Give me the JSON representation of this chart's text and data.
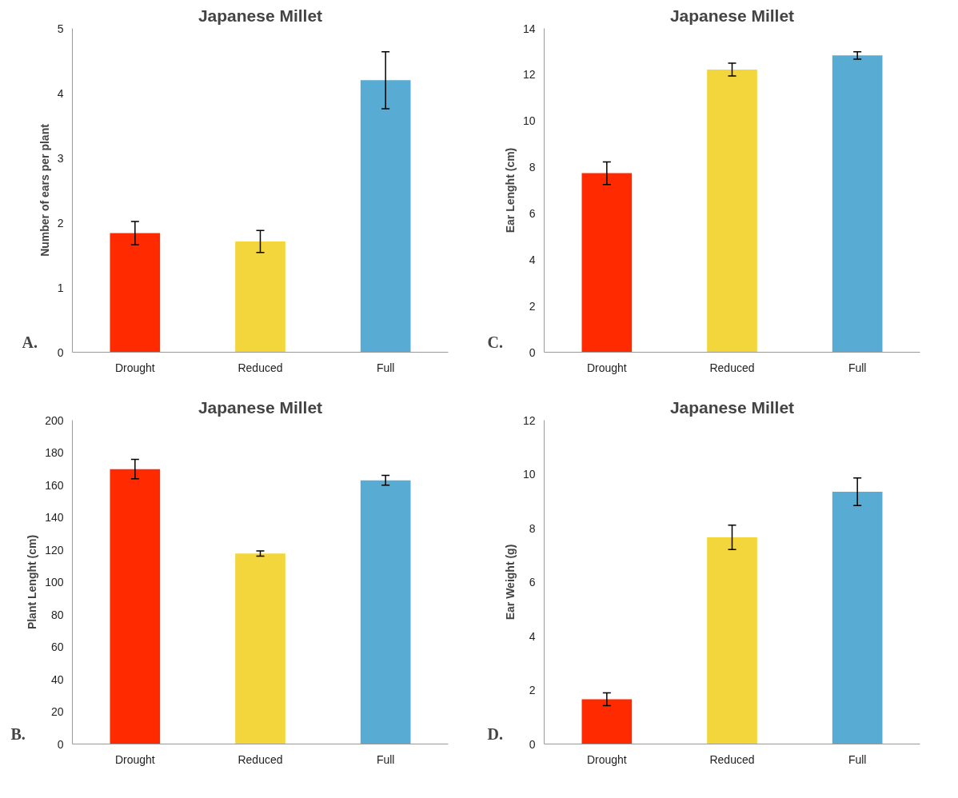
{
  "chart_data": [
    {
      "type": "bar",
      "title": "Japanese Millet",
      "ylabel": "Number of ears per plant",
      "categories": [
        "Drought",
        "Reduced",
        "Full"
      ],
      "values": [
        1.84,
        1.71,
        4.2
      ],
      "errors": [
        0.18,
        0.17,
        0.44
      ],
      "colors": [
        "#ff2a00",
        "#f3d63c",
        "#58abd3"
      ],
      "ylim": [
        0,
        5
      ],
      "yticks": [
        0,
        1,
        2,
        3,
        4,
        5
      ],
      "annotations": [
        "A."
      ]
    },
    {
      "type": "bar",
      "title": "Japanese Millet",
      "ylabel": "Ear Lenght (cm)",
      "categories": [
        "Drought",
        "Reduced",
        "Full"
      ],
      "values": [
        7.74,
        12.22,
        12.83
      ],
      "errors": [
        0.49,
        0.28,
        0.16
      ],
      "colors": [
        "#ff2a00",
        "#f3d63c",
        "#58abd3"
      ],
      "ylim": [
        0,
        14
      ],
      "yticks": [
        0,
        2,
        4,
        6,
        8,
        10,
        12,
        14
      ],
      "annotations": [
        "C."
      ]
    },
    {
      "type": "bar",
      "title": "Japanese Millet",
      "ylabel": "Plant Lenght (cm)",
      "categories": [
        "Drought",
        "Reduced",
        "Full"
      ],
      "values": [
        169.8,
        117.6,
        162.9
      ],
      "errors": [
        6,
        1.6,
        3
      ],
      "colors": [
        "#ff2a00",
        "#f3d63c",
        "#58abd3"
      ],
      "ylim": [
        0,
        200
      ],
      "yticks": [
        0,
        20,
        40,
        60,
        80,
        100,
        120,
        140,
        160,
        180,
        200
      ],
      "annotations": [
        "B."
      ]
    },
    {
      "type": "bar",
      "title": "Japanese Millet",
      "ylabel": "Ear Weight (g)",
      "categories": [
        "Drought",
        "Reduced",
        "Full"
      ],
      "values": [
        1.66,
        7.66,
        9.35
      ],
      "errors": [
        0.24,
        0.45,
        0.51
      ],
      "colors": [
        "#ff2a00",
        "#f3d63c",
        "#58abd3"
      ],
      "ylim": [
        0,
        12
      ],
      "yticks": [
        0,
        2,
        4,
        6,
        8,
        10,
        12
      ],
      "annotations": [
        "D."
      ]
    }
  ]
}
